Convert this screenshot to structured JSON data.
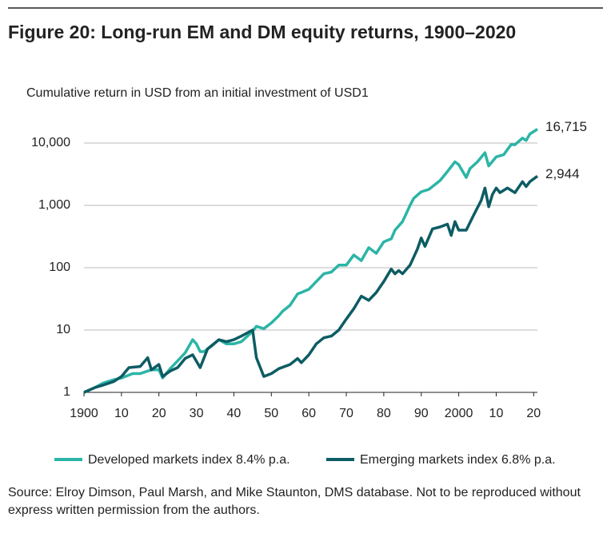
{
  "chart_data": {
    "type": "line",
    "title": "Figure 20: Long-run EM and DM equity returns, 1900–2020",
    "subtitle": "Cumulative return in USD from an initial investment of USD1",
    "source": "Source: Elroy Dimson, Paul Marsh, and Mike Staunton, DMS database. Not to be reproduced without express written permission from the authors.",
    "log_scale": true,
    "grid": true,
    "legend": "bottom",
    "xlim": [
      1900,
      2021
    ],
    "xticks": [
      1900,
      {
        "value": 1910,
        "label": "10"
      },
      {
        "value": 1920,
        "label": "20"
      },
      {
        "value": 1930,
        "label": "30"
      },
      {
        "value": 1940,
        "label": "40"
      },
      {
        "value": 1950,
        "label": "50"
      },
      {
        "value": 1960,
        "label": "60"
      },
      {
        "value": 1970,
        "label": "70"
      },
      {
        "value": 1980,
        "label": "80"
      },
      {
        "value": 1990,
        "label": "90"
      },
      2000,
      {
        "value": 2010,
        "label": "10"
      },
      {
        "value": 2020,
        "label": "20"
      }
    ],
    "ylim": [
      1,
      20000
    ],
    "yticks": [
      1,
      10,
      100,
      {
        "value": 1000,
        "label": "1,000"
      },
      {
        "value": 10000,
        "label": "10,000"
      }
    ],
    "series": [
      {
        "name": "Developed markets index 8.4% p.a.",
        "color": "#2bb5a6",
        "x": [
          1900,
          1903,
          1905,
          1908,
          1910,
          1913,
          1915,
          1917,
          1918,
          1920,
          1921,
          1923,
          1925,
          1927,
          1928,
          1929,
          1930,
          1931,
          1932,
          1934,
          1936,
          1938,
          1940,
          1942,
          1945,
          1946,
          1948,
          1950,
          1952,
          1953,
          1955,
          1957,
          1958,
          1960,
          1962,
          1964,
          1966,
          1968,
          1970,
          1972,
          1974,
          1976,
          1978,
          1980,
          1982,
          1983,
          1985,
          1987,
          1988,
          1990,
          1992,
          1995,
          1997,
          1999,
          2000,
          2002,
          2003,
          2005,
          2007,
          2008,
          2010,
          2012,
          2014,
          2015,
          2017,
          2018,
          2019,
          2021
        ],
        "values": [
          1,
          1.2,
          1.4,
          1.6,
          1.7,
          2.0,
          2.0,
          2.2,
          2.3,
          2.3,
          1.7,
          2.4,
          3.2,
          4.3,
          5.5,
          7,
          6,
          4.5,
          4.5,
          5.5,
          7,
          6,
          6,
          6.5,
          9.5,
          11.5,
          10.5,
          13,
          17,
          20,
          25,
          38,
          40,
          45,
          60,
          80,
          85,
          110,
          110,
          160,
          130,
          210,
          170,
          260,
          290,
          400,
          550,
          1000,
          1300,
          1650,
          1800,
          2500,
          3500,
          5000,
          4500,
          2800,
          3900,
          5000,
          7000,
          4300,
          6000,
          6500,
          9500,
          9400,
          12000,
          11000,
          14000,
          16715
        ],
        "end_label": "16,715"
      },
      {
        "name": "Emerging markets index 6.8% p.a.",
        "color": "#0d5c63",
        "x": [
          1900,
          1903,
          1905,
          1908,
          1910,
          1912,
          1915,
          1917,
          1918,
          1920,
          1921,
          1923,
          1925,
          1927,
          1929,
          1931,
          1933,
          1936,
          1938,
          1940,
          1942,
          1945,
          1946,
          1948,
          1950,
          1952,
          1955,
          1957,
          1958,
          1960,
          1962,
          1964,
          1966,
          1968,
          1970,
          1972,
          1974,
          1976,
          1978,
          1980,
          1982,
          1983,
          1984,
          1985,
          1987,
          1989,
          1990,
          1991,
          1993,
          1995,
          1997,
          1998,
          1999,
          2000,
          2002,
          2004,
          2006,
          2007,
          2008,
          2009,
          2010,
          2011,
          2013,
          2015,
          2017,
          2018,
          2019,
          2021
        ],
        "values": [
          1,
          1.2,
          1.3,
          1.5,
          1.8,
          2.5,
          2.6,
          3.6,
          2.3,
          2.8,
          1.8,
          2.2,
          2.5,
          3.5,
          4,
          2.5,
          5,
          7,
          6.5,
          7,
          8,
          10,
          3.6,
          1.8,
          2,
          2.4,
          2.8,
          3.5,
          3,
          4,
          6,
          7.5,
          8,
          10,
          15,
          22,
          35,
          30,
          40,
          60,
          95,
          80,
          90,
          80,
          110,
          200,
          300,
          220,
          420,
          450,
          500,
          330,
          550,
          400,
          400,
          700,
          1200,
          1900,
          950,
          1500,
          1900,
          1600,
          1900,
          1600,
          2400,
          2000,
          2400,
          2944
        ],
        "end_label": "2,944"
      }
    ]
  }
}
